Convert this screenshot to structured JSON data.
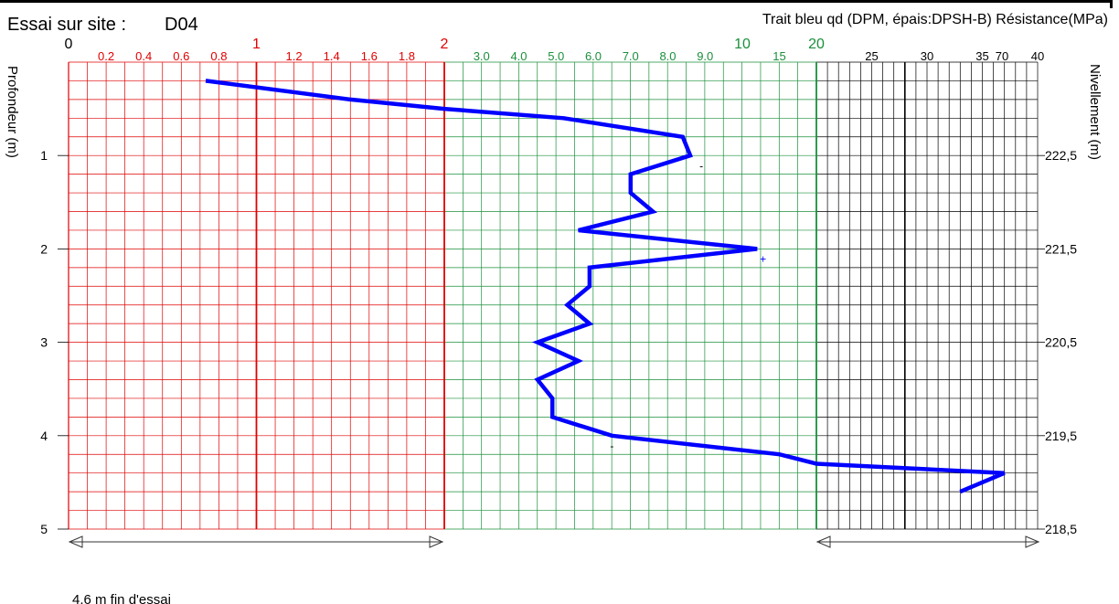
{
  "header": {
    "title": "Essai sur site :",
    "site": "D04",
    "legend": "Trait bleu qd (DPM, épais:DPSH-B) Résistance(MPa)"
  },
  "footer": {
    "note": "4,6 m  fin d'essai"
  },
  "chart_data": {
    "type": "line",
    "title": "Essai sur site : D04",
    "subtitle": "Trait bleu qd (DPM, épais:DPSH-B) Résistance(MPa)",
    "xlabel": "",
    "ylabel": "Profondeur (m)",
    "y2label": "Nivellement (m)",
    "ylim": [
      0,
      5
    ],
    "y_ticks": [
      "1",
      "2",
      "3",
      "4",
      "5"
    ],
    "y2_ticks": [
      "222,5",
      "221,5",
      "220,5",
      "219,5",
      "218,5"
    ],
    "grid": true,
    "x_axis_segments": [
      {
        "range": [
          0,
          2
        ],
        "color": "#e00000",
        "major_labels": [
          "0",
          "1",
          "2"
        ],
        "minor_labels": [
          "0.2",
          "0.4",
          "0.6",
          "0.8",
          "1.2",
          "1.4",
          "1.6",
          "1.8"
        ]
      },
      {
        "range": [
          2,
          20
        ],
        "color": "#1a8f3a",
        "major_labels": [
          "10",
          "20"
        ],
        "minor_labels": [
          "3.0",
          "4.0",
          "5.0",
          "6.0",
          "7.0",
          "8.0",
          "9.0",
          "15"
        ]
      },
      {
        "range": [
          20,
          100
        ],
        "color": "#000000",
        "major_labels": [],
        "minor_labels": [
          "25",
          "30",
          "35",
          "40",
          "70"
        ]
      }
    ],
    "series": [
      {
        "color": "#0000ff",
        "x": [
          0.73,
          1.5,
          2.0,
          5.2,
          8.4,
          8.6,
          7.0,
          7.0,
          7.6,
          5.6,
          12.0,
          5.9,
          5.9,
          5.3,
          5.9,
          4.5,
          5.6,
          4.5,
          4.9,
          4.9,
          6.5,
          15,
          20,
          37,
          33
        ],
        "y": [
          0.2,
          0.4,
          0.5,
          0.6,
          0.8,
          1.0,
          1.2,
          1.4,
          1.6,
          1.8,
          2.0,
          2.2,
          2.4,
          2.6,
          2.8,
          3.0,
          3.2,
          3.4,
          3.6,
          3.8,
          4.0,
          4.2,
          4.3,
          4.4,
          4.6
        ]
      }
    ],
    "annotations": [
      {
        "text": "-",
        "x": 8.9,
        "y": 1.1
      },
      {
        "text": "+",
        "x": 12.8,
        "y": 2.1
      },
      {
        "text": "-",
        "x": 6.5,
        "y": 4.1
      }
    ]
  }
}
